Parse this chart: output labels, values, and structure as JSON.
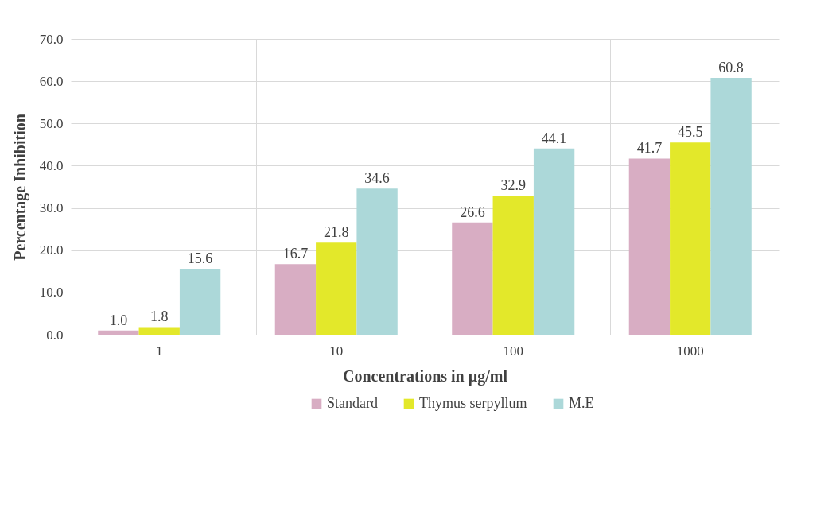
{
  "chart_data": {
    "type": "bar",
    "xlabel": "Concentrations in µg/ml",
    "ylabel": "Percentage  Inhibition",
    "categories": [
      "1",
      "10",
      "100",
      "1000"
    ],
    "series": [
      {
        "name": "Standard",
        "color": "#d8adc3",
        "values": [
          1.0,
          16.7,
          26.6,
          41.7
        ],
        "value_labels": [
          "1.0",
          "16.7",
          "26.6",
          "41.7"
        ]
      },
      {
        "name": "Thymus serpyllum",
        "color": "#e3e82a",
        "values": [
          1.8,
          21.8,
          32.9,
          45.5
        ],
        "value_labels": [
          "1.8",
          "21.8",
          "32.9",
          "45.5"
        ]
      },
      {
        "name": "M.E",
        "color": "#acd8d9",
        "values": [
          15.6,
          34.6,
          44.1,
          60.8
        ],
        "value_labels": [
          "15.6",
          "34.6",
          "44.1",
          "60.8"
        ]
      }
    ],
    "ylim": [
      0,
      70
    ],
    "yticks": [
      {
        "value": 0,
        "label": "0.0"
      },
      {
        "value": 10,
        "label": "10.0"
      },
      {
        "value": 20,
        "label": "20.0"
      },
      {
        "value": 30,
        "label": "30.0"
      },
      {
        "value": 40,
        "label": "40.0"
      },
      {
        "value": 50,
        "label": "50.0"
      },
      {
        "value": 60,
        "label": "60.0"
      },
      {
        "value": 70,
        "label": "70.0"
      }
    ],
    "grid": true,
    "legend": "bottom"
  }
}
